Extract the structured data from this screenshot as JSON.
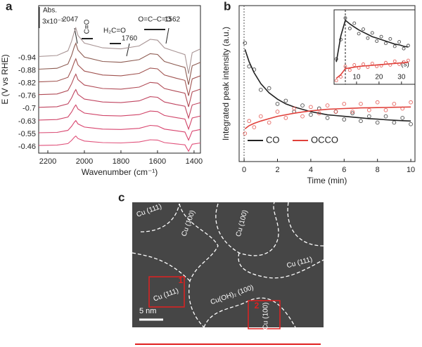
{
  "chart_data": [
    {
      "type": "line",
      "panel_label": "a",
      "ylabel": "E (V vs RHE)",
      "xlabel": "Wavenumber (cm⁻¹)",
      "x": [
        2250,
        2150,
        2090,
        2070,
        2055,
        2047,
        2035,
        2000,
        1900,
        1800,
        1700,
        1640,
        1600,
        1562,
        1500,
        1450,
        1430,
        1410,
        1365
      ],
      "xlim": [
        2250,
        1365
      ],
      "xticks": [
        2200,
        2000,
        1800,
        1600,
        1400
      ],
      "ylim": [
        -0.6,
        11
      ],
      "legend": "left",
      "annotations": [
        "Abs.",
        "3x10⁻³",
        "2047",
        "C≡O",
        "H₂C=O",
        "1760",
        "O=C–C=O",
        "1562"
      ],
      "series": [
        {
          "name": "-0.94",
          "color": "#a89494",
          "values": [
            7,
            7.08,
            7.45,
            8.2,
            8.95,
            9.25,
            8.65,
            8.05,
            7.68,
            7.6,
            7.83,
            8.35,
            8.28,
            7.68,
            7.38,
            7.15,
            5.65,
            7.3,
            7.6
          ]
        },
        {
          "name": "-0.88",
          "color": "#8c5a50",
          "values": [
            6,
            6.07,
            6.41,
            7.09,
            7.77,
            8.04,
            7.5,
            6.95,
            6.61,
            6.54,
            6.75,
            7.22,
            7.16,
            6.61,
            6.34,
            6.14,
            4.78,
            6.27,
            6.54
          ]
        },
        {
          "name": "-0.82",
          "color": "#a0524f",
          "values": [
            5,
            5.06,
            5.36,
            5.97,
            6.57,
            6.82,
            6.33,
            5.85,
            5.54,
            5.48,
            5.67,
            6.09,
            6.03,
            5.54,
            5.3,
            5.12,
            3.91,
            5.24,
            5.48
          ]
        },
        {
          "name": "-0.76",
          "color": "#b04a55",
          "values": [
            4,
            4.05,
            4.32,
            4.86,
            5.39,
            5.61,
            5.18,
            4.75,
            4.48,
            4.43,
            4.59,
            4.96,
            4.91,
            4.48,
            4.27,
            4.11,
            3.04,
            4.21,
            4.43
          ]
        },
        {
          "name": "-0.7",
          "color": "#c04560",
          "values": [
            3,
            3.05,
            3.28,
            3.74,
            4.21,
            4.4,
            4.02,
            3.65,
            3.42,
            3.37,
            3.51,
            3.84,
            3.79,
            3.42,
            3.23,
            3.09,
            2.16,
            3.19,
            3.37
          ]
        },
        {
          "name": "-0.63",
          "color": "#d04468",
          "values": [
            2,
            2.04,
            2.24,
            2.63,
            3.03,
            3.19,
            2.87,
            2.55,
            2.36,
            2.32,
            2.43,
            2.71,
            2.67,
            2.36,
            2.2,
            2.08,
            1.29,
            2.16,
            2.32
          ]
        },
        {
          "name": "-0.55",
          "color": "#d8446e",
          "values": [
            1,
            1.03,
            1.19,
            1.51,
            1.83,
            1.96,
            1.7,
            1.45,
            1.29,
            1.26,
            1.35,
            1.58,
            1.54,
            1.29,
            1.16,
            1.06,
            0.42,
            1.13,
            1.26
          ]
        },
        {
          "name": "-0.46",
          "color": "#e0507a",
          "values": [
            0,
            0.03,
            0.15,
            0.4,
            0.65,
            0.75,
            0.55,
            0.35,
            0.23,
            0.2,
            0.28,
            0.45,
            0.43,
            0.23,
            0.13,
            0.05,
            -0.45,
            0.1,
            0.2
          ]
        }
      ]
    },
    {
      "type": "scatter",
      "panel_label": "b",
      "xlabel": "Time (min)",
      "ylabel": "Integrated peak intensity (a.u.)",
      "xlim": [
        -0.3,
        10.25
      ],
      "xticks": [
        0,
        2,
        4,
        6,
        8,
        10
      ],
      "ylim": [
        0,
        10
      ],
      "legend": "lower left",
      "series": [
        {
          "name": "CO",
          "color": "#222222",
          "x": [
            0.05,
            0.3,
            0.6,
            1,
            1.5,
            2,
            2.5,
            3,
            3.5,
            4,
            4.5,
            5,
            5.5,
            6,
            6.5,
            7,
            7.5,
            8,
            8.5,
            9,
            9.5,
            10
          ],
          "values": [
            7.6,
            6.1,
            5.9,
            4.6,
            4.7,
            3.7,
            3.9,
            3.2,
            3.6,
            3.0,
            3.4,
            2.8,
            3.2,
            2.7,
            3.1,
            2.6,
            2.9,
            2.5,
            2.9,
            2.5,
            2.8,
            2.4
          ],
          "fit": [
            7.2,
            6.4,
            5.7,
            5.0,
            4.4,
            4.0,
            3.7,
            3.5,
            3.35,
            3.2,
            3.1,
            3.0,
            2.95,
            2.9,
            2.85,
            2.8,
            2.75,
            2.72,
            2.68,
            2.65,
            2.62,
            2.6
          ]
        },
        {
          "name": "OCCO",
          "color": "#e0403a",
          "x": [
            0.05,
            0.3,
            0.6,
            1,
            1.5,
            2,
            2.5,
            3,
            3.5,
            4,
            4.5,
            5,
            5.5,
            6,
            6.5,
            7,
            7.5,
            8,
            8.5,
            9,
            9.5,
            10
          ],
          "values": [
            1.8,
            2.6,
            2.2,
            2.9,
            2.5,
            3.2,
            2.8,
            3.4,
            2.9,
            3.5,
            3.1,
            3.6,
            3.2,
            3.7,
            3.2,
            3.7,
            3.3,
            3.8,
            3.3,
            3.7,
            3.4,
            3.8
          ],
          "fit": [
            2.1,
            2.3,
            2.45,
            2.6,
            2.75,
            2.9,
            3.0,
            3.1,
            3.18,
            3.25,
            3.3,
            3.35,
            3.38,
            3.4,
            3.42,
            3.44,
            3.45,
            3.46,
            3.47,
            3.48,
            3.49,
            3.5
          ]
        }
      ]
    },
    {
      "type": "scatter",
      "xlabel": "(s)",
      "xlim": [
        0,
        36
      ],
      "xticks": [
        10,
        20,
        30
      ],
      "ylim": [
        0,
        10
      ],
      "series": [
        {
          "color": "#222222",
          "x": [
            1,
            3,
            5,
            7,
            9,
            11,
            13,
            15,
            17,
            19,
            21,
            23,
            25,
            27,
            29,
            31,
            33
          ],
          "values": [
            3.4,
            6,
            8.9,
            7.5,
            8.2,
            6.8,
            7.4,
            6.2,
            6.9,
            5.8,
            6.4,
            5.5,
            6.1,
            5.1,
            5.7,
            4.8,
            5.2
          ],
          "fit": [
            3,
            6.5,
            8.6,
            8.1,
            7.7,
            7.3,
            7,
            6.7,
            6.4,
            6.2,
            6,
            5.8,
            5.6,
            5.4,
            5.3,
            5.1,
            5
          ]
        },
        {
          "color": "#e0403a",
          "x": [
            1,
            3,
            5,
            7,
            9,
            11,
            13,
            15,
            17,
            19,
            21,
            23,
            25,
            27,
            29,
            31,
            33
          ],
          "values": [
            0.5,
            1.0,
            2.4,
            1.9,
            2.6,
            2.2,
            2.7,
            2.3,
            2.8,
            2.4,
            2.5,
            2.9,
            2.6,
            3.1,
            2.7,
            3.0,
            3.2
          ],
          "fit": [
            0.8,
            1.3,
            2.1,
            2.2,
            2.3,
            2.4,
            2.45,
            2.5,
            2.55,
            2.6,
            2.65,
            2.7,
            2.75,
            2.8,
            2.85,
            2.9,
            2.95
          ]
        }
      ]
    }
  ],
  "image": {
    "panel_label": "c",
    "scale_bar": "5 nm",
    "labels": [
      "Cu (111)",
      "Cu (100)",
      "Cu (100)",
      "Cu (111)",
      "Cu (111)",
      "Cu(OH)₂ (100)",
      "Cu (100)",
      "1",
      "2"
    ]
  }
}
